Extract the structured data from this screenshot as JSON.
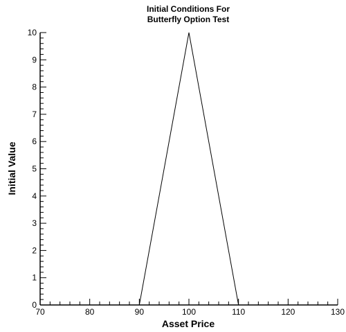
{
  "chart_data": {
    "type": "line",
    "title": [
      "Initial Conditions For",
      "Butterfly Option Test"
    ],
    "xlabel": "Asset Price",
    "ylabel": "Initial Value",
    "xlim": [
      70,
      130
    ],
    "ylim": [
      0,
      10
    ],
    "x_major_ticks": [
      "70",
      "80",
      "90",
      "100",
      "110",
      "120",
      "130"
    ],
    "y_major_ticks": [
      "0",
      "1",
      "2",
      "3",
      "4",
      "5",
      "6",
      "7",
      "8",
      "9",
      "10"
    ],
    "x_minor_step": 2,
    "y_minor_step": 0.2,
    "grid": false,
    "series": [
      {
        "x": [
          70,
          90,
          100,
          110,
          130
        ],
        "y": [
          0,
          0,
          10,
          0,
          0
        ],
        "color": "#000000"
      }
    ]
  }
}
